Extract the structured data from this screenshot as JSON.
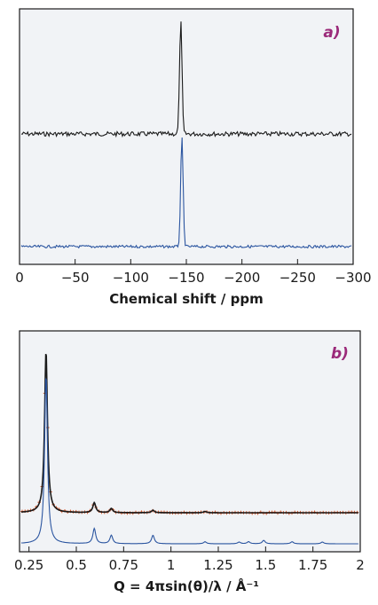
{
  "chart_data": [
    {
      "type": "line",
      "panel_label": "a)",
      "xlabel": "Chemical shift / ppm",
      "ylabel": "",
      "xlim": [
        0,
        -300
      ],
      "x_ticks": [
        0,
        -50,
        -100,
        -150,
        -200,
        -250,
        -300
      ],
      "x_tick_labels": [
        "0",
        "−50",
        "−100",
        "−150",
        "−200",
        "−250",
        "−300"
      ],
      "grid": false,
      "y_ticks_shown": false,
      "series": [
        {
          "color": "#1a1a1a",
          "peaks": [
            {
              "x": -145,
              "height": 1.0
            }
          ]
        },
        {
          "color": "#2b55a0",
          "peaks": [
            {
              "x": -146,
              "height": 1.0
            }
          ]
        }
      ]
    },
    {
      "type": "line",
      "panel_label": "b)",
      "xlabel": "Q = 4πsin(θ)/λ / Å⁻¹",
      "ylabel": "",
      "xlim": [
        0.2,
        2.0
      ],
      "x_ticks": [
        0.25,
        0.5,
        0.75,
        1.0,
        1.25,
        1.5,
        1.75,
        2.0
      ],
      "x_tick_labels": [
        "0.25",
        "0.5",
        "0.75",
        "1",
        "1.25",
        "1.5",
        "1.75",
        "2"
      ],
      "grid": false,
      "y_ticks_shown": false,
      "series": [
        {
          "color": "#d44a1a",
          "style": "markers",
          "peaks": [
            {
              "x": 0.34,
              "height": 1.0
            },
            {
              "x": 0.595,
              "height": 0.06
            },
            {
              "x": 0.685,
              "height": 0.025
            },
            {
              "x": 0.905,
              "height": 0.015
            },
            {
              "x": 1.18,
              "height": 0.008
            }
          ]
        },
        {
          "color": "#1a1a1a",
          "style": "line",
          "peaks": [
            {
              "x": 0.34,
              "height": 0.97
            },
            {
              "x": 0.595,
              "height": 0.06
            },
            {
              "x": 0.685,
              "height": 0.025
            },
            {
              "x": 0.905,
              "height": 0.015
            },
            {
              "x": 1.18,
              "height": 0.008
            }
          ]
        },
        {
          "color": "#2b55a0",
          "style": "line",
          "peaks": [
            {
              "x": 0.34,
              "height": 1.0
            },
            {
              "x": 0.595,
              "height": 0.09
            },
            {
              "x": 0.685,
              "height": 0.05
            },
            {
              "x": 0.905,
              "height": 0.05
            },
            {
              "x": 1.18,
              "height": 0.012
            },
            {
              "x": 1.36,
              "height": 0.01
            },
            {
              "x": 1.41,
              "height": 0.012
            },
            {
              "x": 1.49,
              "height": 0.02
            },
            {
              "x": 1.64,
              "height": 0.012
            },
            {
              "x": 1.8,
              "height": 0.01
            }
          ]
        }
      ]
    }
  ],
  "colors": {
    "plot_background": "#f1f3f6",
    "frame": "#1a1a1a",
    "panel_label": "#9b2a7a"
  }
}
